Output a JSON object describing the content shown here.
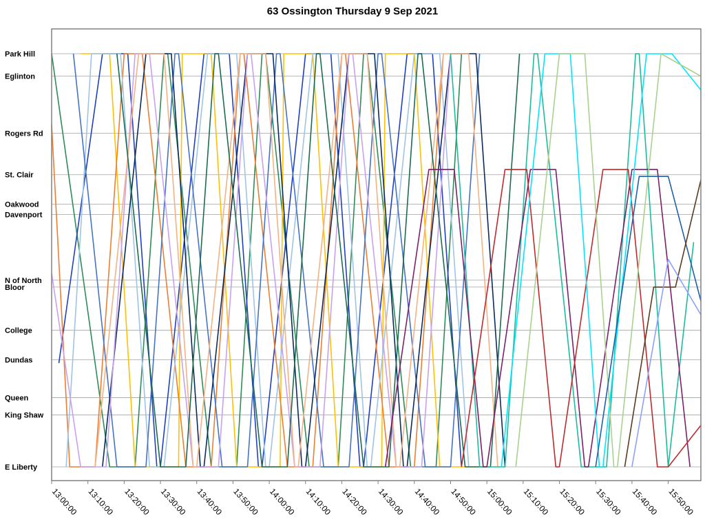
{
  "chart_data": {
    "type": "line",
    "title": "63 Ossington Thursday 9 Sep 2021",
    "xlabel": "",
    "ylabel": "",
    "x_ticks": [
      "13:00:00",
      "13:10:00",
      "13:20:00",
      "13:30:00",
      "13:40:00",
      "13:50:00",
      "14:00:00",
      "14:10:00",
      "14:20:00",
      "14:30:00",
      "14:40:00",
      "14:50:00",
      "15:00:00",
      "15:10:00",
      "15:20:00",
      "15:30:00",
      "15:40:00",
      "15:50:00"
    ],
    "x_range_minutes": [
      0,
      179
    ],
    "y_range_km": [
      0,
      11.95
    ],
    "stops": [
      {
        "name": "Park Hill",
        "km": 11.95
      },
      {
        "name": "Eglinton",
        "km": 11.3
      },
      {
        "name": "Rogers Rd",
        "km": 9.65
      },
      {
        "name": "St. Clair",
        "km": 8.45
      },
      {
        "name": "Oakwood",
        "km": 7.6
      },
      {
        "name": "Davenport",
        "km": 7.3
      },
      {
        "name": "N of North",
        "km": 5.4
      },
      {
        "name": "Bloor",
        "km": 5.2
      },
      {
        "name": "College",
        "km": 3.95
      },
      {
        "name": "Dundas",
        "km": 3.1
      },
      {
        "name": "Queen",
        "km": 2.0
      },
      {
        "name": "King Shaw",
        "km": 1.5
      },
      {
        "name": "E Liberty",
        "km": 0.0
      }
    ],
    "gridlines": "horizontal at each stop",
    "legend": "none",
    "series": [
      {
        "color": "#2e8b57",
        "x": [
          0,
          16,
          23,
          31,
          32,
          44,
          51,
          58,
          59,
          71,
          79,
          86,
          87,
          99,
          106,
          113
        ],
        "y": [
          11.95,
          0,
          0,
          11.95,
          11.95,
          0,
          0,
          11.95,
          11.95,
          0,
          0,
          11.95,
          11.95,
          0,
          0,
          11.95
        ]
      },
      {
        "color": "#1f3fbf",
        "x": [
          2,
          14,
          21,
          29,
          30,
          42,
          49,
          57,
          58,
          70,
          77,
          85,
          86,
          98,
          105,
          113
        ],
        "y": [
          3.0,
          11.95,
          11.95,
          0,
          0,
          11.95,
          11.95,
          0,
          0,
          11.95,
          11.95,
          0,
          0,
          11.95,
          11.95,
          0
        ]
      },
      {
        "color": "#ffc000",
        "x": [
          8,
          16,
          23,
          35,
          36,
          44,
          51,
          63,
          64,
          72,
          79,
          91,
          92,
          100,
          107,
          119
        ],
        "y": [
          11.95,
          11.95,
          0,
          0,
          11.95,
          11.95,
          0,
          0,
          11.95,
          11.95,
          0,
          0,
          11.95,
          11.95,
          0,
          0
        ]
      },
      {
        "color": "#ed7d31",
        "x": [
          0,
          5,
          12,
          20,
          25,
          37,
          44,
          52,
          53,
          65,
          72,
          80,
          81,
          93,
          100,
          108
        ],
        "y": [
          9.9,
          0,
          0,
          11.95,
          11.95,
          0,
          0,
          11.95,
          11.95,
          0,
          0,
          11.95,
          11.95,
          0,
          0,
          11.95
        ]
      },
      {
        "color": "#9dc3e6",
        "x": [
          4,
          11,
          19,
          27,
          31,
          43,
          51,
          59,
          60,
          72,
          79,
          87,
          88,
          100,
          107,
          115
        ],
        "y": [
          0,
          11.95,
          11.95,
          0,
          0,
          11.95,
          11.95,
          0,
          0,
          11.95,
          11.95,
          0,
          0,
          11.95,
          11.95,
          0
        ]
      },
      {
        "color": "#4472c4",
        "x": [
          6,
          18,
          26,
          34,
          35,
          47,
          54,
          62,
          63,
          75,
          82,
          90,
          91,
          103,
          110,
          118
        ],
        "y": [
          11.95,
          0,
          0,
          11.95,
          11.95,
          0,
          0,
          11.95,
          11.95,
          0,
          0,
          11.95,
          11.95,
          0,
          0,
          11.95
        ]
      },
      {
        "color": "#0b2a5c",
        "x": [
          14,
          26,
          33,
          41,
          42,
          54,
          61,
          69,
          70,
          82,
          89,
          97,
          98,
          110,
          117,
          125
        ],
        "y": [
          0,
          11.95,
          11.95,
          0,
          0,
          11.95,
          11.95,
          0,
          0,
          11.95,
          11.95,
          0,
          0,
          11.95,
          11.95,
          0
        ]
      },
      {
        "color": "#c9a0f0",
        "x": [
          0,
          8,
          15,
          23,
          27,
          39,
          46,
          54,
          55,
          67,
          74,
          82,
          83,
          95,
          102,
          110
        ],
        "y": [
          5.6,
          0,
          0,
          11.95,
          11.95,
          0,
          0,
          11.95,
          11.95,
          0,
          0,
          11.95,
          11.95,
          0,
          0,
          11.95
        ]
      },
      {
        "color": "#f4b183",
        "x": [
          12,
          24,
          31,
          39,
          40,
          52,
          59,
          67,
          68,
          80,
          87,
          95,
          96,
          108,
          115,
          123
        ],
        "y": [
          0,
          11.95,
          11.95,
          0,
          0,
          11.95,
          11.95,
          0,
          0,
          11.95,
          11.95,
          0,
          0,
          11.95,
          11.95,
          0
        ]
      },
      {
        "color": "#1a6b4f",
        "x": [
          18,
          30,
          37,
          45,
          46,
          58,
          65,
          73,
          74,
          86,
          93,
          101,
          102,
          114,
          121,
          129
        ],
        "y": [
          11.95,
          0,
          0,
          11.95,
          11.95,
          0,
          0,
          11.95,
          11.95,
          0,
          0,
          11.95,
          11.95,
          0,
          0,
          11.95
        ]
      },
      {
        "color": "#1abc9c",
        "x": [
          110,
          118,
          125,
          133,
          134,
          146,
          153,
          161,
          162,
          170,
          177
        ],
        "y": [
          11.95,
          0,
          0,
          11.95,
          11.95,
          0,
          0,
          11.95,
          11.95,
          0,
          6.5
        ]
      },
      {
        "color": "#7b1f6b",
        "x": [
          92,
          104,
          111,
          119,
          120,
          132,
          139,
          147,
          148,
          160,
          167,
          176
        ],
        "y": [
          0,
          8.6,
          8.6,
          0,
          0,
          8.6,
          8.6,
          0,
          0,
          8.6,
          8.6,
          0
        ]
      },
      {
        "color": "#c0292b",
        "x": [
          113,
          125,
          131,
          139,
          140,
          152,
          159,
          167,
          170,
          179
        ],
        "y": [
          0,
          8.6,
          8.6,
          0,
          0,
          8.6,
          8.6,
          0,
          0,
          1.2
        ]
      },
      {
        "color": "#00e5ff",
        "x": [
          124,
          136,
          143,
          151,
          152,
          164,
          171,
          179
        ],
        "y": [
          0,
          11.95,
          11.95,
          0,
          0,
          11.95,
          11.95,
          10.9
        ]
      },
      {
        "color": "#a9d18e",
        "x": [
          128,
          140,
          147,
          155,
          156,
          168,
          179
        ],
        "y": [
          0,
          11.95,
          11.95,
          0,
          0,
          11.95,
          11.3
        ]
      },
      {
        "color": "#1f5faa",
        "x": [
          150,
          162,
          170,
          179
        ],
        "y": [
          0,
          8.4,
          8.4,
          4.8
        ]
      },
      {
        "color": "#5c3a1e",
        "x": [
          158,
          166,
          172,
          179
        ],
        "y": [
          0,
          5.2,
          5.2,
          8.3
        ]
      },
      {
        "color": "#8ca0ff",
        "x": [
          160,
          170,
          179
        ],
        "y": [
          0,
          6.0,
          4.4
        ]
      }
    ]
  }
}
